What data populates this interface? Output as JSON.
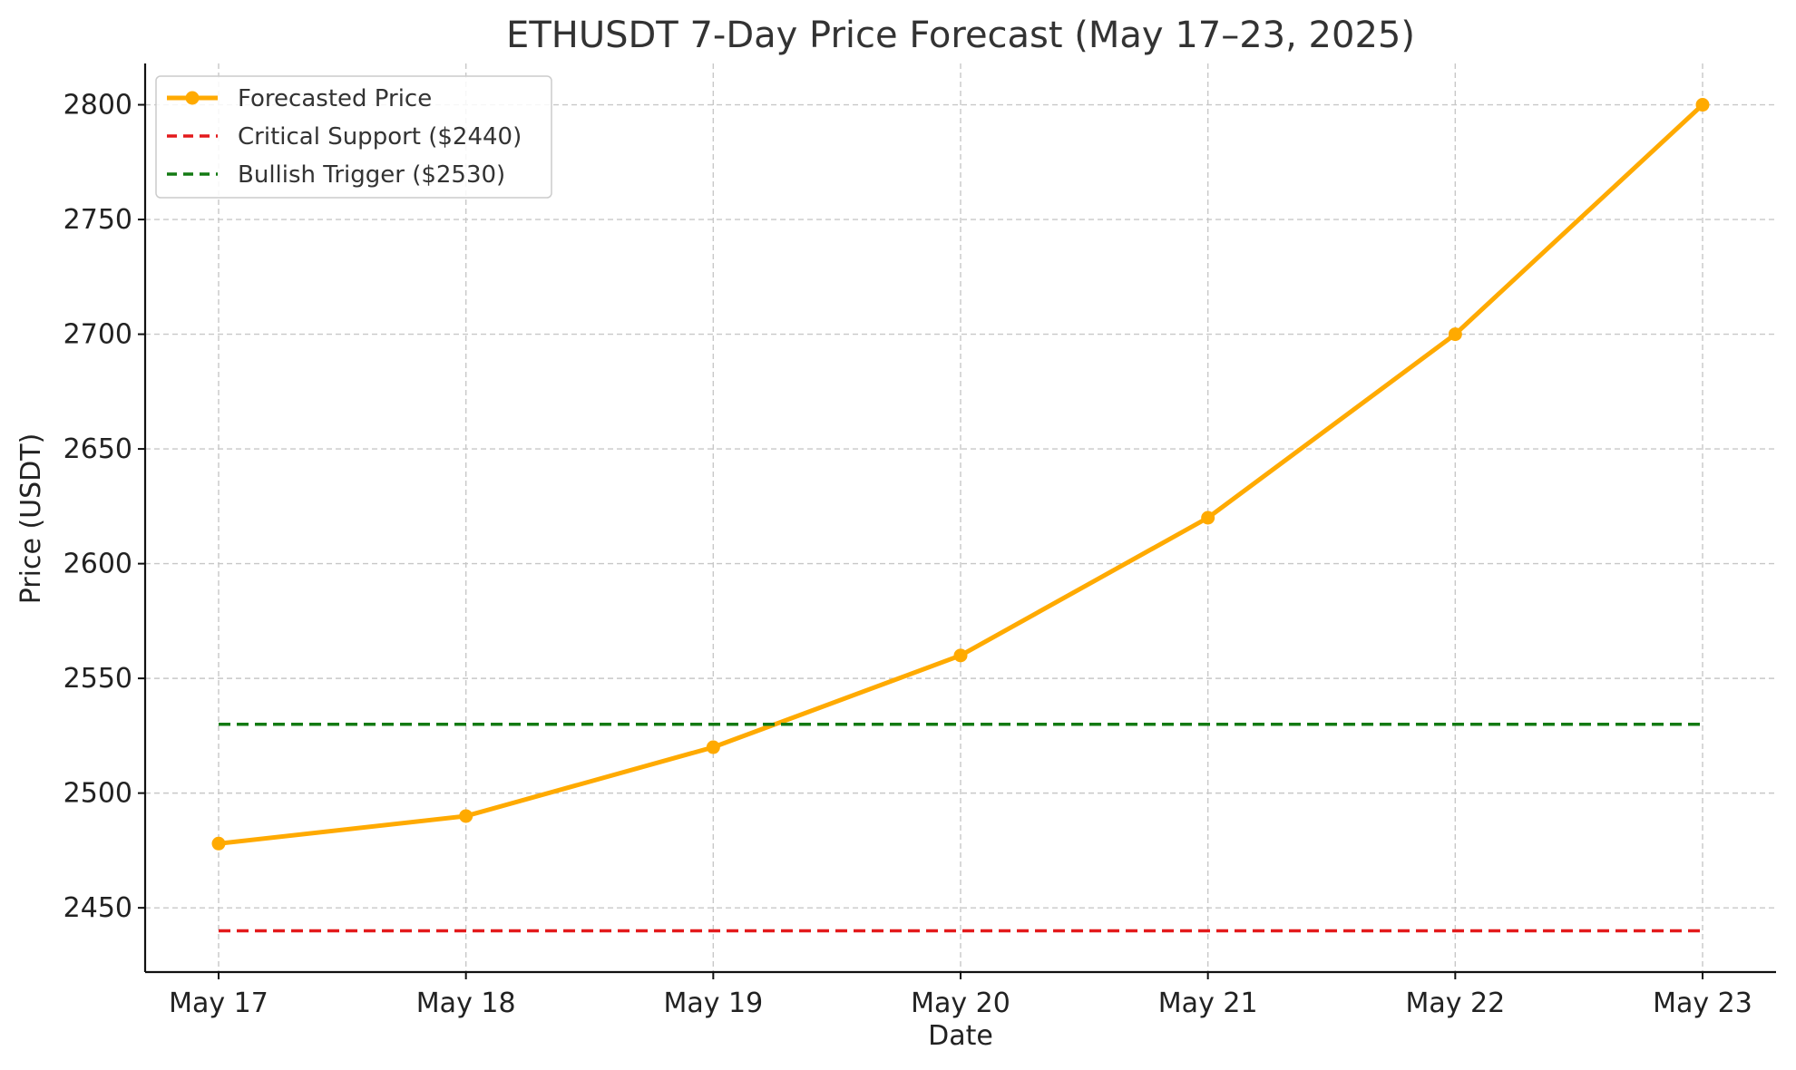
{
  "chart_data": {
    "type": "line",
    "title": "ETHUSDT 7-Day Price Forecast (May 17–23, 2025)",
    "xlabel": "Date",
    "ylabel": "Price (USDT)",
    "categories": [
      "May 17",
      "May 18",
      "May 19",
      "May 20",
      "May 21",
      "May 22",
      "May 23"
    ],
    "series": [
      {
        "name": "Forecasted Price",
        "values": [
          2478,
          2490,
          2520,
          2560,
          2620,
          2700,
          2800
        ],
        "color": "#ffaa00",
        "style": "solid-with-markers"
      },
      {
        "name": "Critical Support ($2440)",
        "values": [
          2440,
          2440,
          2440,
          2440,
          2440,
          2440,
          2440
        ],
        "color": "#e31a1c",
        "style": "dashed"
      },
      {
        "name": "Bullish Trigger ($2530)",
        "values": [
          2530,
          2530,
          2530,
          2530,
          2530,
          2530,
          2530
        ],
        "color": "#137a13",
        "style": "dashed"
      }
    ],
    "ylim": [
      2422,
      2818
    ],
    "yticks": [
      2450,
      2500,
      2550,
      2600,
      2650,
      2700,
      2750,
      2800
    ],
    "grid": true,
    "legend_position": "top-left"
  }
}
